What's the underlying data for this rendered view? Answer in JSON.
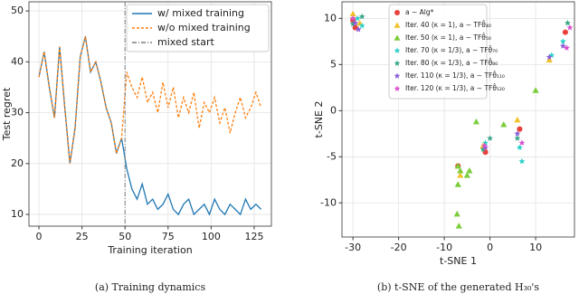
{
  "chart_data": [
    {
      "type": "line",
      "caption": "(a) Training dynamics",
      "xlabel": "Training iteration",
      "ylabel": "Test regret",
      "x": [
        0,
        3,
        6,
        9,
        12,
        15,
        18,
        21,
        24,
        27,
        30,
        33,
        36,
        39,
        42,
        45,
        48,
        51,
        54,
        57,
        60,
        63,
        66,
        69,
        72,
        75,
        78,
        81,
        84,
        87,
        90,
        93,
        96,
        99,
        102,
        105,
        108,
        111,
        114,
        117,
        120,
        123,
        126,
        129
      ],
      "series": [
        {
          "name": "w/ mixed training",
          "color": "#1f77b4",
          "dash": "solid",
          "values": [
            37,
            42,
            35,
            29,
            43,
            31,
            20,
            27,
            41,
            45,
            38,
            40,
            36,
            31,
            28,
            22,
            25,
            19,
            15,
            13,
            16,
            12,
            13,
            11,
            12,
            14,
            11,
            10,
            12,
            13,
            10,
            11,
            12,
            10,
            13,
            11,
            10,
            12,
            11,
            10,
            13,
            11,
            12,
            11
          ]
        },
        {
          "name": "w/o mixed training",
          "color": "#ff7f0e",
          "dash": "dashed",
          "values": [
            37,
            42,
            35,
            29,
            43,
            31,
            20,
            27,
            41,
            45,
            38,
            40,
            36,
            31,
            28,
            22,
            25,
            38,
            35,
            33,
            37,
            32,
            34,
            30,
            36,
            31,
            35,
            29,
            33,
            30,
            34,
            27,
            32,
            30,
            33,
            28,
            31,
            26,
            30,
            33,
            29,
            31,
            34,
            31
          ]
        }
      ],
      "vline": {
        "name": "mixed start",
        "x": 50,
        "color": "#7f7f7f"
      },
      "xlim": [
        -5.8,
        135
      ],
      "ylim": [
        7.7,
        51.8
      ],
      "xticks": [
        0,
        25,
        50,
        75,
        100,
        125
      ],
      "yticks": [
        10,
        20,
        30,
        40,
        50
      ],
      "grid": true,
      "legend": "upper right"
    },
    {
      "type": "scatter",
      "caption": "(b) t-SNE of the generated H₃₀'s",
      "xlabel": "t-SNE 1",
      "ylabel": "t-SNE 2",
      "series": [
        {
          "name": "a ∼ Alg*",
          "color": "#e8413c",
          "marker": "circle",
          "x": [
            -30,
            -29.5,
            -7,
            -1,
            6.5,
            16.5
          ],
          "y": [
            9.8,
            9,
            -6,
            -4.5,
            -2,
            8.5
          ]
        },
        {
          "name": "Iter. 40 (κ = 1), a ∼ TFθ̂₄₀",
          "color": "#f2c12e",
          "marker": "triangle",
          "x": [
            -30,
            -28.5,
            -6.5,
            -1.5,
            6,
            13
          ],
          "y": [
            10.5,
            9.5,
            -7,
            -3.8,
            -1,
            5.5
          ]
        },
        {
          "name": "Iter. 50 (κ = 1), a ∼ TFθ̂₅₀",
          "color": "#7ccd3c",
          "marker": "triangle",
          "x": [
            -7,
            -7,
            -6.5,
            -5,
            -4.5,
            -7.2,
            -6.8,
            -3,
            3,
            10
          ],
          "y": [
            -6,
            -8,
            -6.5,
            -7,
            -6.5,
            -11.2,
            -12.5,
            -1.2,
            -1.5,
            2.2
          ]
        },
        {
          "name": "Iter. 70 (κ = 1/3), a ∼ TFθ̂₇₀",
          "color": "#2ad1c9",
          "marker": "star",
          "x": [
            -29,
            -28,
            -1,
            6.5,
            7,
            13.5,
            16
          ],
          "y": [
            10,
            9.2,
            -3.5,
            -4,
            -5.5,
            6,
            7.5
          ]
        },
        {
          "name": "Iter. 80 (κ = 1/3), a ∼ TFθ̂₈₀",
          "color": "#3aa68a",
          "marker": "star",
          "x": [
            -30,
            -28,
            -1.5,
            0,
            6,
            17
          ],
          "y": [
            9.4,
            10.2,
            -4.2,
            -3,
            -3,
            9.5
          ]
        },
        {
          "name": "Iter. 110 (κ = 1/3), a ∼ TFθ̂₁₁₀",
          "color": "#8a5cd6",
          "marker": "star",
          "x": [
            -29.5,
            -28.8,
            -1,
            6,
            13,
            16
          ],
          "y": [
            9.5,
            8.8,
            -4,
            -2.5,
            5.8,
            7
          ]
        },
        {
          "name": "Iter. 120 (κ = 1/3), a ∼ TFθ̂₁₂₀",
          "color": "#d94fd0",
          "marker": "star",
          "x": [
            -30,
            -1.2,
            7,
            16.8,
            17.5
          ],
          "y": [
            10,
            -3.8,
            -3.5,
            6.8,
            9
          ]
        }
      ],
      "xlim": [
        -32.4,
        18.5
      ],
      "ylim": [
        -13.7,
        11.8
      ],
      "xticks": [
        -30,
        -20,
        -10,
        0,
        10
      ],
      "yticks": [
        -10,
        -5,
        0,
        5,
        10
      ],
      "grid": true,
      "legend": "upper left"
    }
  ]
}
